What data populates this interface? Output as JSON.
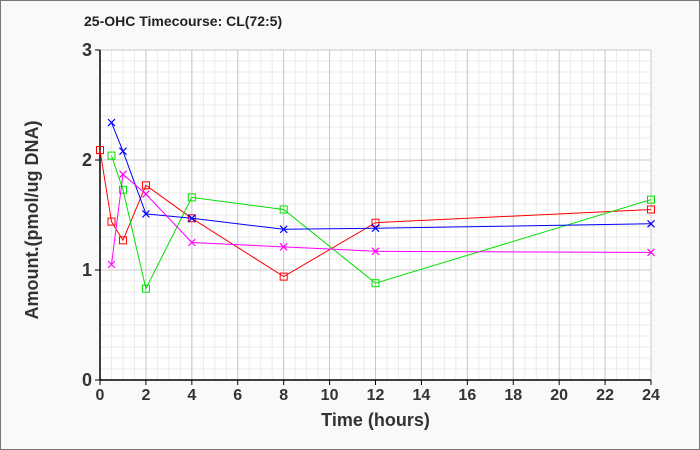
{
  "chart_data": {
    "type": "line",
    "title": "25-OHC Timecourse: CL(72:5)",
    "xlabel": "Time (hours)",
    "ylabel": "Amount.(pmol/ug DNA)",
    "xlim": [
      0,
      24
    ],
    "ylim": [
      0,
      3
    ],
    "xticks": [
      0,
      2,
      4,
      6,
      8,
      10,
      12,
      14,
      16,
      18,
      20,
      22,
      24
    ],
    "yticks": [
      0,
      1,
      2,
      3
    ],
    "grid": true,
    "series": [
      {
        "name": "red",
        "color": "#ff0000",
        "marker": "square",
        "x": [
          0,
          0.5,
          1,
          2,
          4,
          8,
          12,
          24
        ],
        "y": [
          2.09,
          1.44,
          1.27,
          1.77,
          1.47,
          0.94,
          1.43,
          1.55
        ]
      },
      {
        "name": "green",
        "color": "#00e000",
        "marker": "square",
        "x": [
          0.5,
          1,
          2,
          4,
          8,
          12,
          24
        ],
        "y": [
          2.04,
          1.73,
          0.83,
          1.66,
          1.55,
          0.88,
          1.64
        ]
      },
      {
        "name": "blue",
        "color": "#0000ff",
        "marker": "x",
        "x": [
          0.5,
          1,
          2,
          4,
          8,
          12,
          24
        ],
        "y": [
          2.34,
          2.08,
          1.51,
          1.47,
          1.37,
          1.38,
          1.42
        ]
      },
      {
        "name": "magenta",
        "color": "#ff00ff",
        "marker": "x",
        "x": [
          0.5,
          1,
          2,
          4,
          8,
          12,
          24
        ],
        "y": [
          1.05,
          1.87,
          1.69,
          1.25,
          1.21,
          1.17,
          1.16
        ]
      }
    ]
  }
}
